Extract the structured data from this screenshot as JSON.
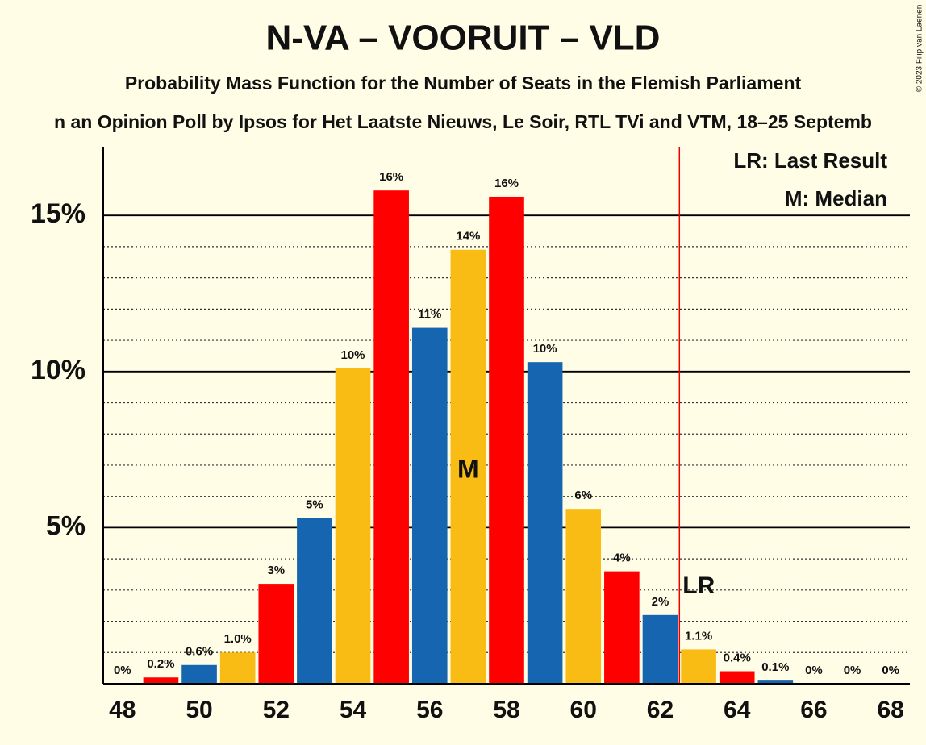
{
  "chart_data": {
    "type": "bar",
    "title": "N-VA – VOORUIT – VLD",
    "subtitle": "Probability Mass Function for the Number of Seats in the Flemish Parliament",
    "subtitle2": "n an Opinion Poll by Ipsos for Het Laatste Nieuws, Le Soir, RTL TVi and VTM, 18–25 Septemb",
    "copyright": "© 2023 Filip van Laenen",
    "categories": [
      "48",
      null,
      "50",
      null,
      "52",
      null,
      "54",
      null,
      "56",
      null,
      "58",
      null,
      "60",
      null,
      "62",
      null,
      "64",
      null,
      "66",
      null,
      "68"
    ],
    "values": [
      0,
      0.2,
      0.6,
      1.0,
      3.2,
      5.3,
      10.1,
      15.8,
      11.4,
      13.9,
      15.6,
      10.3,
      5.6,
      3.6,
      2.2,
      1.1,
      0.4,
      0.1,
      0,
      0,
      0
    ],
    "value_labels": [
      "0%",
      "0.2%",
      "0.6%",
      "1.0%",
      "3%",
      "5%",
      "10%",
      "16%",
      "11%",
      "14%",
      "16%",
      "10%",
      "6%",
      "4%",
      "2%",
      "1.1%",
      "0.4%",
      "0.1%",
      "0%",
      "0%",
      "0%"
    ],
    "colors": [
      "#f9bc15",
      "#ff0000",
      "#1565b0",
      "#f9bc15",
      "#ff0000",
      "#1565b0",
      "#f9bc15",
      "#ff0000",
      "#1565b0",
      "#f9bc15",
      "#ff0000",
      "#1565b0",
      "#f9bc15",
      "#ff0000",
      "#1565b0",
      "#f9bc15",
      "#ff0000",
      "#1565b0",
      "#f9bc15",
      "#ff0000",
      "#1565b0"
    ],
    "ylim": [
      0,
      17.2
    ],
    "yticks": [
      {
        "value": 5,
        "label": "5%"
      },
      {
        "value": 10,
        "label": "10%"
      },
      {
        "value": 15,
        "label": "15%"
      }
    ],
    "minor_yticks": [
      1,
      2,
      3,
      4,
      6,
      7,
      8,
      9,
      11,
      12,
      13,
      14
    ],
    "median_index": 9,
    "median_label": "M",
    "last_result_index": 15,
    "last_result_label": "LR",
    "legend": [
      "LR: Last Result",
      "M: Median"
    ]
  }
}
